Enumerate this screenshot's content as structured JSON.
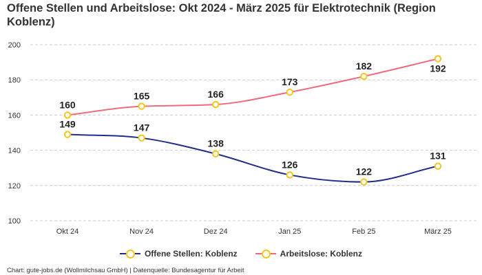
{
  "title": "Offene Stellen und Arbeitslose: Okt 2024 - März 2025 für Elektrotechnik (Region Koblenz)",
  "footer": "Chart: gute-jobs.de (Wollmilchsau GmbH) | Datenquelle: Bundesagentur für Arbeit",
  "colors": {
    "offene": "#1f2d8a",
    "arbeitslose": "#f06a7e",
    "marker": "#f5c518",
    "grid": "#cccccc"
  },
  "chart_data": {
    "type": "line",
    "title": "Offene Stellen und Arbeitslose: Okt 2024 - März 2025 für Elektrotechnik (Region Koblenz)",
    "categories": [
      "Okt 24",
      "Nov 24",
      "Dez 24",
      "Jan 25",
      "Feb 25",
      "März 25"
    ],
    "yticks": [
      100,
      120,
      140,
      160,
      180,
      200
    ],
    "ylim": [
      100,
      200
    ],
    "grid": true,
    "legend_position": "bottom",
    "series": [
      {
        "name": "Offene Stellen: Koblenz",
        "values": [
          149,
          147,
          138,
          126,
          122,
          131
        ]
      },
      {
        "name": "Arbeitslose: Koblenz",
        "values": [
          160,
          165,
          166,
          173,
          182,
          192
        ]
      }
    ]
  }
}
